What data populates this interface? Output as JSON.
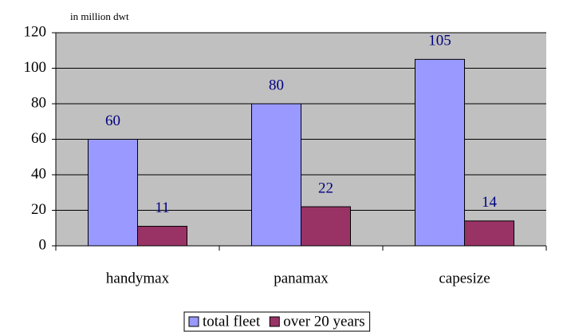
{
  "chart_data": {
    "type": "bar",
    "y_axis_label": "in million dwt",
    "categories": [
      "handymax",
      "panamax",
      "capesize"
    ],
    "series": [
      {
        "name": "total fleet",
        "color": "#9999ff",
        "values": [
          60,
          80,
          105
        ]
      },
      {
        "name": "over 20 years",
        "color": "#993366",
        "values": [
          11,
          22,
          14
        ]
      }
    ],
    "ylim": [
      0,
      120
    ],
    "yticks": [
      0,
      20,
      40,
      60,
      80,
      100,
      120
    ],
    "grid": true,
    "legend": "bottom"
  }
}
